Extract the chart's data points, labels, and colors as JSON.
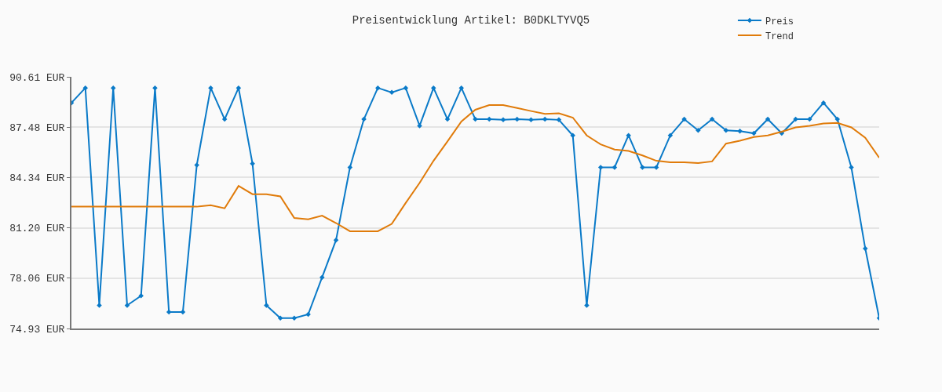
{
  "chart_data": {
    "type": "line",
    "title": "Preisentwicklung Artikel: B0DKLTYVQ5",
    "categories": [
      null,
      null,
      null,
      null,
      null,
      null,
      null,
      null,
      null,
      null,
      null,
      null,
      null,
      null,
      null,
      null,
      null,
      null,
      null,
      null,
      null,
      null,
      null,
      null,
      null,
      null,
      null,
      null,
      null,
      null,
      null,
      null,
      null,
      null,
      null,
      null,
      null,
      null,
      null,
      null,
      null,
      null,
      null,
      null,
      null,
      null,
      null,
      null,
      null,
      null,
      null,
      null,
      null,
      null,
      null,
      null,
      null,
      null,
      null
    ],
    "series": [
      {
        "name": "Preis",
        "color": "#0a7ac8",
        "marker": "diamond",
        "values": [
          88.99,
          89.92,
          76.37,
          89.92,
          76.37,
          76.97,
          89.92,
          75.95,
          75.95,
          85.11,
          89.92,
          87.97,
          89.92,
          85.2,
          76.37,
          75.58,
          75.58,
          75.81,
          78.12,
          80.44,
          84.97,
          87.97,
          89.92,
          89.64,
          89.92,
          87.56,
          89.92,
          87.97,
          89.92,
          87.97,
          87.97,
          87.93,
          87.97,
          87.93,
          87.97,
          87.93,
          86.96,
          76.37,
          84.97,
          84.97,
          86.96,
          84.97,
          84.97,
          86.96,
          87.97,
          87.28,
          87.97,
          87.28,
          87.23,
          87.09,
          87.97,
          87.09,
          87.97,
          87.97,
          88.99,
          87.97,
          84.97,
          79.91,
          75.58
        ]
      },
      {
        "name": "Trend",
        "color": "#e07b0a",
        "marker": "none",
        "values": [
          82.52,
          82.52,
          82.52,
          82.52,
          82.52,
          82.52,
          82.52,
          82.52,
          82.52,
          82.52,
          82.61,
          82.42,
          83.81,
          83.3,
          83.3,
          83.16,
          81.82,
          81.73,
          81.96,
          81.5,
          80.99,
          80.99,
          80.99,
          81.45,
          82.75,
          84.0,
          85.38,
          86.59,
          87.83,
          88.56,
          88.85,
          88.85,
          88.67,
          88.48,
          88.3,
          88.34,
          88.07,
          86.96,
          86.4,
          86.08,
          85.99,
          85.71,
          85.38,
          85.29,
          85.29,
          85.24,
          85.34,
          86.45,
          86.63,
          86.86,
          86.96,
          87.19,
          87.46,
          87.56,
          87.7,
          87.74,
          87.46,
          86.82,
          85.57
        ]
      }
    ],
    "ylim": [
      74.93,
      90.61
    ],
    "yticks": [
      {
        "value": 74.93,
        "label": "74.93 EUR"
      },
      {
        "value": 78.06,
        "label": "78.06 EUR"
      },
      {
        "value": 81.2,
        "label": "81.20 EUR"
      },
      {
        "value": 84.34,
        "label": "84.34 EUR"
      },
      {
        "value": 87.48,
        "label": "87.48 EUR"
      },
      {
        "value": 90.61,
        "label": "90.61 EUR"
      }
    ],
    "grid": "y",
    "legend": "top right",
    "tick_labels": "y",
    "line_style": "solid"
  }
}
